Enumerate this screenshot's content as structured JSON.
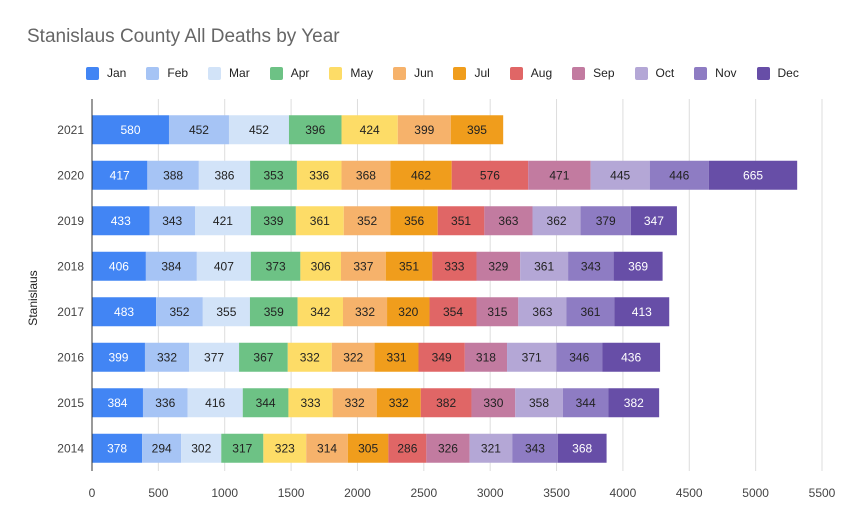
{
  "chart_data": {
    "type": "bar",
    "orientation": "horizontal",
    "stacked": true,
    "title": "Stanislaus County All Deaths by Year",
    "ylabel": "Stanislaus",
    "xlabel": "",
    "xlim": [
      0,
      5500
    ],
    "x_ticks": [
      "0",
      "500",
      "1000",
      "1500",
      "2000",
      "2500",
      "3000",
      "3500",
      "4000",
      "4500",
      "5000",
      "5500"
    ],
    "grid": true,
    "legend_position": "top",
    "categories": [
      "2021",
      "2020",
      "2019",
      "2018",
      "2017",
      "2016",
      "2015",
      "2014"
    ],
    "series": [
      {
        "name": "Jan",
        "color": "#4285f4",
        "label_color": "#ffffff",
        "values": [
          580,
          417,
          433,
          406,
          483,
          399,
          384,
          378
        ]
      },
      {
        "name": "Feb",
        "color": "#a6c4f5",
        "label_color": "#222222",
        "values": [
          452,
          388,
          343,
          384,
          352,
          332,
          336,
          294
        ]
      },
      {
        "name": "Mar",
        "color": "#d2e3f8",
        "label_color": "#222222",
        "values": [
          452,
          386,
          421,
          407,
          355,
          377,
          416,
          302
        ]
      },
      {
        "name": "Apr",
        "color": "#6dc285",
        "label_color": "#222222",
        "values": [
          396,
          353,
          339,
          373,
          359,
          367,
          344,
          317
        ]
      },
      {
        "name": "May",
        "color": "#fddc67",
        "label_color": "#222222",
        "values": [
          424,
          336,
          361,
          306,
          342,
          332,
          333,
          323
        ]
      },
      {
        "name": "Jun",
        "color": "#f6b26b",
        "label_color": "#222222",
        "values": [
          399,
          368,
          352,
          337,
          332,
          322,
          332,
          314
        ]
      },
      {
        "name": "Jul",
        "color": "#f09d1c",
        "label_color": "#222222",
        "values": [
          395,
          462,
          356,
          351,
          320,
          331,
          332,
          305
        ]
      },
      {
        "name": "Aug",
        "color": "#e06666",
        "label_color": "#222222",
        "values": [
          null,
          576,
          351,
          333,
          354,
          349,
          382,
          286
        ]
      },
      {
        "name": "Sep",
        "color": "#c27ba0",
        "label_color": "#222222",
        "values": [
          null,
          471,
          363,
          329,
          315,
          318,
          330,
          326
        ]
      },
      {
        "name": "Oct",
        "color": "#b4a7d6",
        "label_color": "#222222",
        "values": [
          null,
          445,
          362,
          361,
          363,
          371,
          358,
          321
        ]
      },
      {
        "name": "Nov",
        "color": "#8e7cc3",
        "label_color": "#222222",
        "values": [
          null,
          446,
          379,
          343,
          361,
          346,
          344,
          343
        ]
      },
      {
        "name": "Dec",
        "color": "#674ea7",
        "label_color": "#ffffff",
        "values": [
          null,
          665,
          347,
          369,
          413,
          436,
          382,
          368
        ]
      }
    ]
  }
}
